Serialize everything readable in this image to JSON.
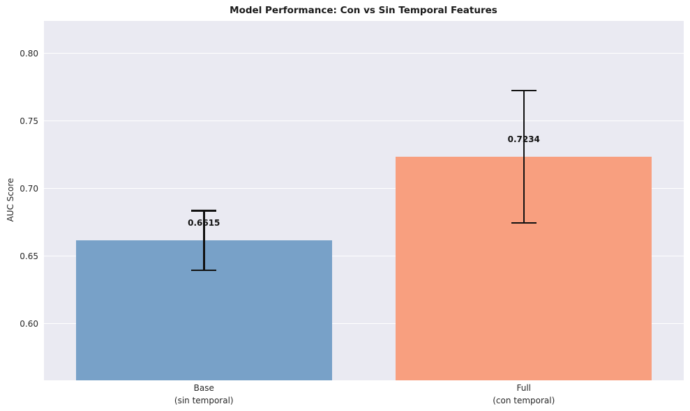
{
  "chart_data": {
    "type": "bar",
    "title": "Model Performance: Con vs Sin Temporal Features",
    "ylabel": "AUC Score",
    "xlabel": "",
    "categories": [
      "Base\n(sin temporal)",
      "Full\n(con temporal)"
    ],
    "values": [
      0.6615,
      0.7234
    ],
    "errors": [
      0.022,
      0.049
    ],
    "value_labels": [
      "0.6615",
      "0.7234"
    ],
    "yticks": [
      0.6,
      0.65,
      0.7,
      0.75,
      0.8
    ],
    "ytick_labels": [
      "0.60",
      "0.65",
      "0.70",
      "0.75",
      "0.80"
    ],
    "ylim": [
      0.558,
      0.824
    ],
    "grid": true,
    "legend_position": "none",
    "bar_colors": [
      "#78a1c8",
      "#f89f7f"
    ],
    "error_bar_color": "#111111",
    "plot_background_color": "#eaeaf2",
    "grid_color": "#ffffff",
    "text_color": "#262626"
  }
}
